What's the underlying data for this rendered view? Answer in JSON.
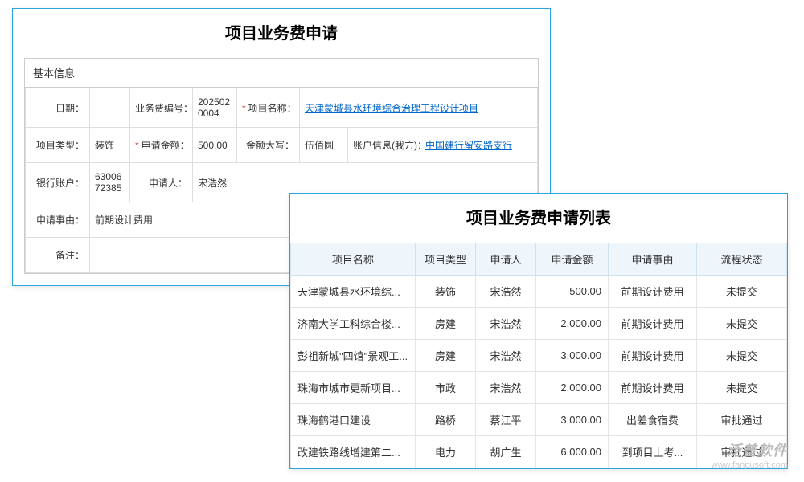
{
  "form": {
    "title": "项目业务费申请",
    "section_title": "基本信息",
    "labels": {
      "date": "日期：",
      "fee_no": "业务费编号：",
      "project_name": "项目名称：",
      "project_type": "项目类型：",
      "apply_amount": "申请金额：",
      "amount_cn": "金额大写：",
      "account_info": "账户信息(我方)：",
      "bank_account": "银行账户：",
      "applicant": "申请人：",
      "apply_reason": "申请事由：",
      "remark": "备注："
    },
    "values": {
      "date": "",
      "fee_no": "2025020004",
      "project_name": "天津蒙城县水环境综合治理工程设计项目",
      "project_type": "装饰",
      "apply_amount": "500.00",
      "amount_cn": "伍佰圆",
      "account_info": "中国建行留安路支行",
      "bank_account": "630067​2385",
      "applicant": "宋浩然",
      "apply_reason": "前期设计费用",
      "remark": ""
    }
  },
  "list": {
    "title": "项目业务费申请列表",
    "columns": [
      "项目名称",
      "项目类型",
      "申请人",
      "申请金额",
      "申请事由",
      "流程状态"
    ],
    "rows": [
      {
        "name": "天津蒙城县水环境综...",
        "type": "装饰",
        "applicant": "宋浩然",
        "amount": "500.00",
        "reason": "前期设计费用",
        "status": "未提交",
        "status_class": "status-unsubmitted"
      },
      {
        "name": "济南大学工科综合楼...",
        "type": "房建",
        "applicant": "宋浩然",
        "amount": "2,000.00",
        "reason": "前期设计费用",
        "status": "未提交",
        "status_class": "status-unsubmitted"
      },
      {
        "name": "彭祖新城\"四馆\"景观工...",
        "type": "房建",
        "applicant": "宋浩然",
        "amount": "3,000.00",
        "reason": "前期设计费用",
        "status": "未提交",
        "status_class": "status-unsubmitted"
      },
      {
        "name": "珠海市城市更新项目...",
        "type": "市政",
        "applicant": "宋浩然",
        "amount": "2,000.00",
        "reason": "前期设计费用",
        "status": "未提交",
        "status_class": "status-unsubmitted"
      },
      {
        "name": "珠海鹤港口建设",
        "type": "路桥",
        "applicant": "蔡江平",
        "amount": "3,000.00",
        "reason": "出差食宿费",
        "status": "审批通过",
        "status_class": "status-approved"
      },
      {
        "name": "改建铁路线增建第二...",
        "type": "电力",
        "applicant": "胡广生",
        "amount": "6,000.00",
        "reason": "到项目上考...",
        "status": "审批通过",
        "status_class": "status-approved"
      }
    ]
  },
  "watermark": {
    "brand": "泛普软件",
    "url": "www.fanpusoft.com"
  }
}
